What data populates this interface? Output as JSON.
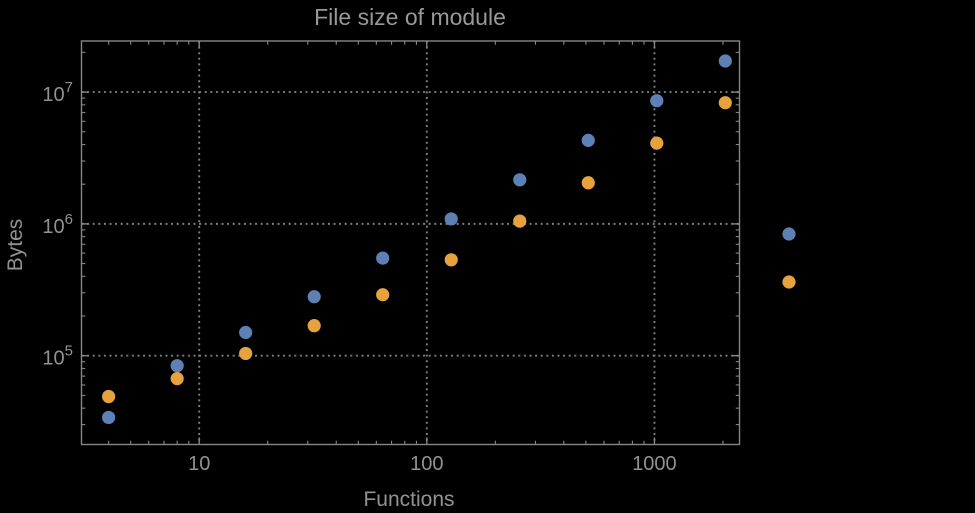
{
  "window": {
    "background": "#000000"
  },
  "chart_data": {
    "type": "scatter",
    "title": "File size of module",
    "xlabel": "Functions",
    "ylabel": "Bytes",
    "x_scale": "log",
    "y_scale": "log",
    "x": [
      4,
      8,
      16,
      32,
      64,
      128,
      256,
      512,
      1024,
      2048
    ],
    "series": [
      {
        "name": "series-1-blue",
        "color": "#5E81B5",
        "values": [
          34000,
          84000,
          150000,
          280000,
          550000,
          1090000,
          2160000,
          4300000,
          8600000,
          17200000
        ]
      },
      {
        "name": "series-2-orange",
        "color": "#E6A23C",
        "values": [
          49000,
          67000,
          104000,
          169000,
          290000,
          534000,
          1050000,
          2050000,
          4100000,
          8300000
        ]
      }
    ],
    "xlim": [
      3.04,
      2364
    ],
    "ylim": [
      21200,
      24400000
    ],
    "x_major_ticks": [
      10,
      100,
      1000
    ],
    "x_tick_labels": [
      "10",
      "100",
      "1000"
    ],
    "y_major_ticks": [
      100000,
      1000000,
      10000000
    ],
    "y_tick_labels": [
      {
        "base": "10",
        "exp": "5"
      },
      {
        "base": "10",
        "exp": "6"
      },
      {
        "base": "10",
        "exp": "7"
      }
    ],
    "grid": {
      "style": "dotted",
      "lines": "decades-only"
    },
    "legend_markers": [
      {
        "color": "#5E81B5",
        "label": ""
      },
      {
        "color": "#E6A23C",
        "label": ""
      }
    ],
    "legend_position": "right-outside-middle"
  },
  "colors": {
    "background": "#000000",
    "frame": "#868686",
    "grid": "#7e7e7e",
    "text": "#929292",
    "text_bright": "#989898",
    "series_1": "#5E81B5",
    "series_2": "#E6A23C"
  }
}
